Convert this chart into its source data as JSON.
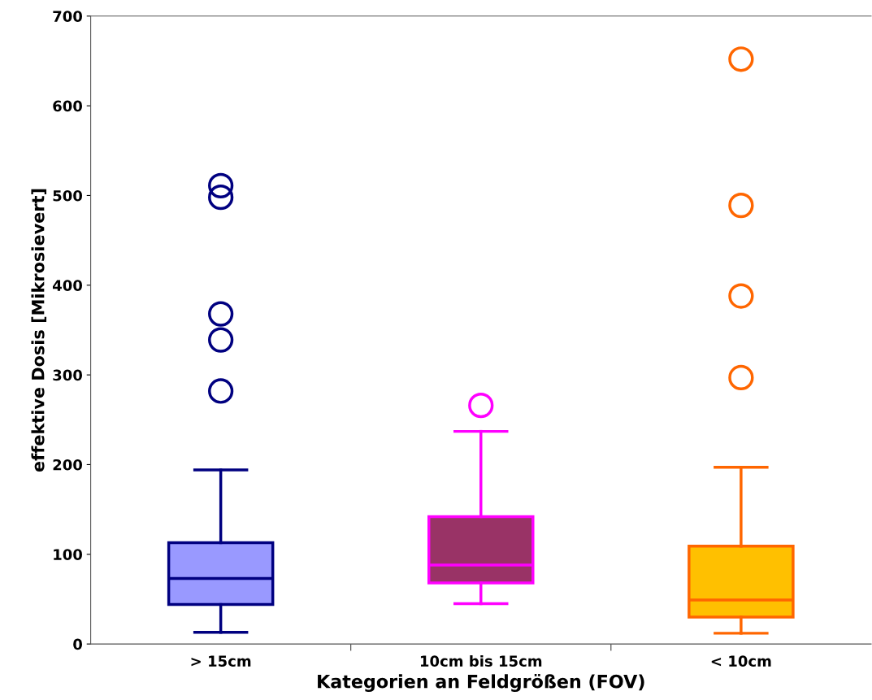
{
  "chart_data": {
    "type": "box",
    "xlabel": "Kategorien an Feldgrößen (FOV)",
    "ylabel": "effektive Dosis [Mikrosievert]",
    "categories": [
      "> 15cm",
      "10cm bis 15cm",
      "< 10cm"
    ],
    "colors": [
      "#9999ff",
      "#993366",
      "#ffc000"
    ],
    "series": [
      {
        "color": "#000080",
        "boxes": [
          {
            "low": 13,
            "q1": 44,
            "median": 73,
            "q3": 113,
            "high": 194,
            "outliers": [
              282,
              339,
              368,
              498,
              511
            ]
          },
          null,
          null
        ]
      },
      {
        "color": "#ff00ff",
        "boxes": [
          null,
          {
            "low": 45,
            "q1": 68,
            "median": 88,
            "q3": 142,
            "high": 237,
            "outliers": [
              266
            ]
          },
          null
        ]
      },
      {
        "color": "#ff6600",
        "boxes": [
          null,
          null,
          {
            "low": 12,
            "q1": 30,
            "median": 49,
            "q3": 109,
            "high": 197,
            "outliers": [
              297,
              388,
              489,
              652
            ]
          }
        ]
      }
    ],
    "ylim": [
      0,
      700
    ],
    "yticks": [
      0,
      100,
      200,
      300,
      400,
      500,
      600,
      700
    ],
    "grid": false,
    "legend": false
  }
}
